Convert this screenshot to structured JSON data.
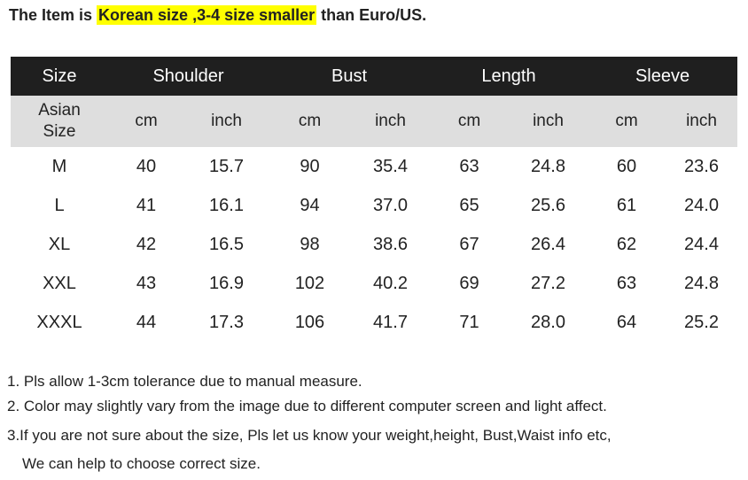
{
  "header": {
    "text_before": "The Item is",
    "highlight": "Korean size ,3-4 size smaller",
    "text_after": "than Euro/US."
  },
  "table": {
    "columns": [
      "Size",
      "Shoulder",
      "Bust",
      "Length",
      "Sleeve"
    ],
    "subheader": [
      "Asian Size",
      "cm",
      "inch",
      "cm",
      "inch",
      "cm",
      "inch",
      "cm",
      "inch"
    ],
    "rows": [
      [
        "M",
        "40",
        "15.7",
        "90",
        "35.4",
        "63",
        "24.8",
        "60",
        "23.6"
      ],
      [
        "L",
        "41",
        "16.1",
        "94",
        "37.0",
        "65",
        "25.6",
        "61",
        "24.0"
      ],
      [
        "XL",
        "42",
        "16.5",
        "98",
        "38.6",
        "67",
        "26.4",
        "62",
        "24.4"
      ],
      [
        "XXL",
        "43",
        "16.9",
        "102",
        "40.2",
        "69",
        "27.2",
        "63",
        "24.8"
      ],
      [
        "XXXL",
        "44",
        "17.3",
        "106",
        "41.7",
        "71",
        "28.0",
        "64",
        "25.2"
      ]
    ]
  },
  "notes": [
    "1. Pls allow 1-3cm tolerance due to manual measure.",
    "2. Color may slightly vary from the image due to different computer screen and light affect.",
    "3.If you are not sure about the size, Pls let us know your weight,height, Bust,Waist info etc,",
    "We can help to choose correct size."
  ]
}
